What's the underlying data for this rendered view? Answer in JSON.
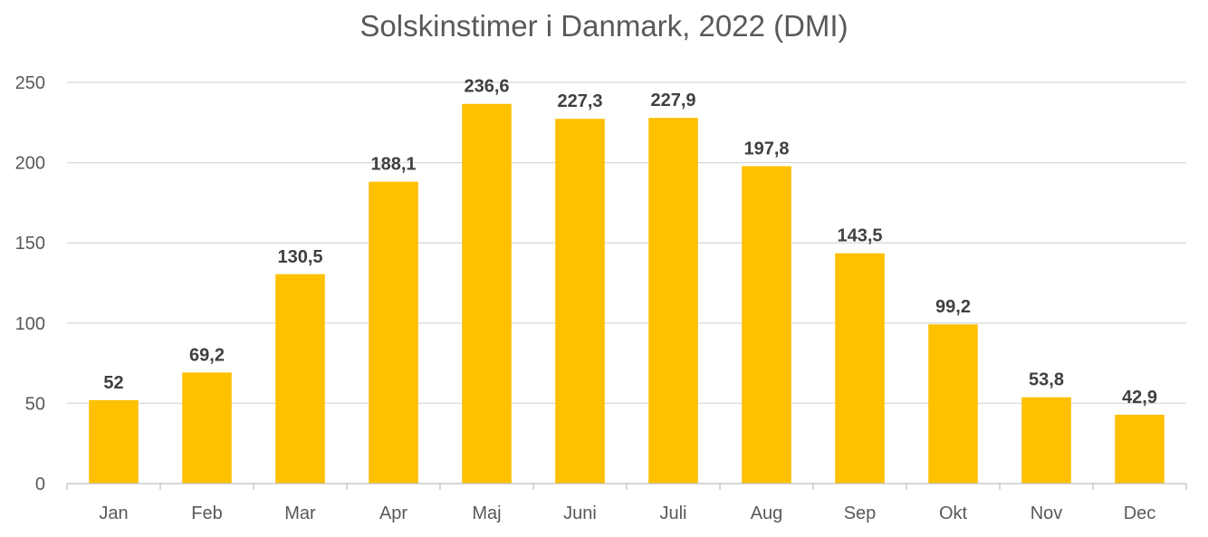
{
  "chart_data": {
    "type": "bar",
    "title": "Solskinstimer i Danmark, 2022 (DMI)",
    "categories": [
      "Jan",
      "Feb",
      "Mar",
      "Apr",
      "Maj",
      "Juni",
      "Juli",
      "Aug",
      "Sep",
      "Okt",
      "Nov",
      "Dec"
    ],
    "values": [
      52,
      69.2,
      130.5,
      188.1,
      236.6,
      227.3,
      227.9,
      197.8,
      143.5,
      99.2,
      53.8,
      42.9
    ],
    "data_labels": [
      "52",
      "69,2",
      "130,5",
      "188,1",
      "236,6",
      "227,3",
      "227,9",
      "197,8",
      "143,5",
      "99,2",
      "53,8",
      "42,9"
    ],
    "xlabel": "",
    "ylabel": "",
    "ylim": [
      0,
      250
    ],
    "yticks": [
      0,
      50,
      100,
      150,
      200,
      250
    ],
    "grid": true,
    "legend": "none",
    "bar_color": "#FFC000",
    "grid_color": "#D9D9D9",
    "axis_color": "#BFBFBF",
    "text_color": "#595959",
    "label_color": "#404040"
  }
}
